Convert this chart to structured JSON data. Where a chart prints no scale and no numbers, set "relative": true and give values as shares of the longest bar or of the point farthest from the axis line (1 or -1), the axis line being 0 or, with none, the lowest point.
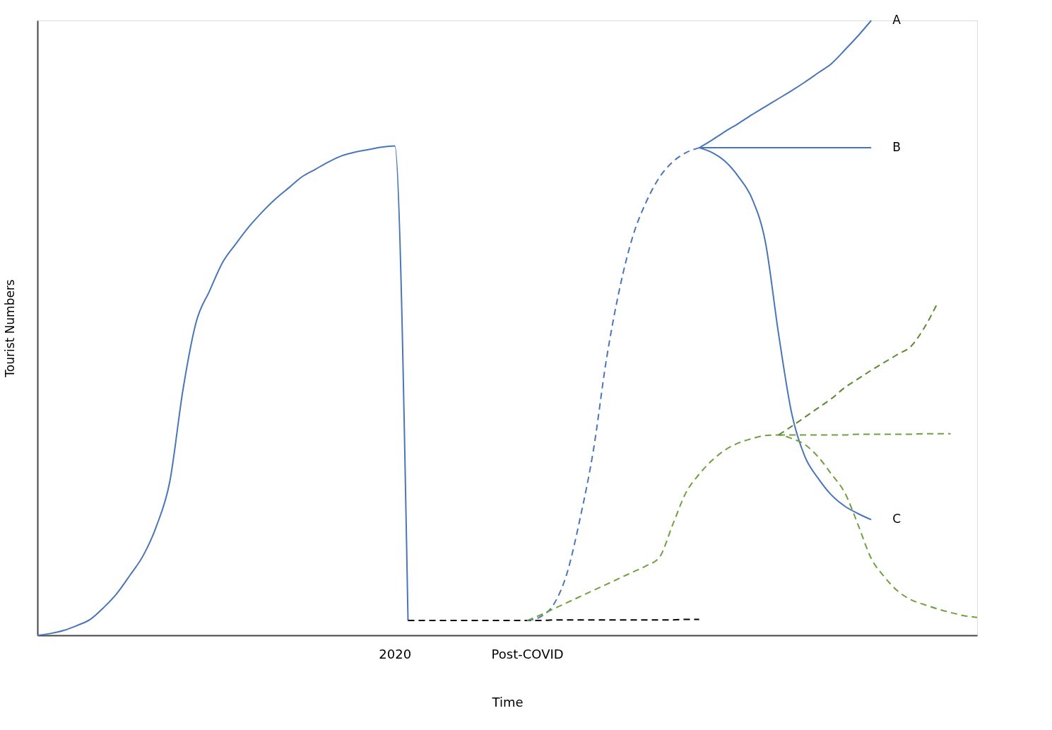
{
  "chart_data": {
    "type": "line",
    "relative": true,
    "xlabel": "Time",
    "ylabel": "Tourist Numbers",
    "categories": [
      null,
      null,
      null,
      null,
      null,
      null,
      null,
      null,
      null,
      null,
      null,
      null,
      null,
      null,
      null,
      null,
      null,
      null,
      null,
      null,
      null,
      null,
      null,
      null,
      null,
      null,
      null,
      "2020",
      null,
      null,
      null,
      null,
      null,
      null,
      null,
      null,
      null,
      "Post-COVID",
      null,
      null,
      null,
      null,
      null,
      null,
      null,
      null,
      null,
      null,
      null,
      null,
      null,
      null,
      null,
      null,
      null,
      null,
      null,
      null,
      null,
      null,
      null,
      null,
      null,
      null,
      null,
      null,
      null,
      null,
      null,
      null,
      null,
      null
    ],
    "tick_labels": "x",
    "grid": false,
    "legend": false,
    "marker": "none",
    "series": [
      {
        "color": "#4a76b8",
        "line_style": "solid",
        "values": [
          0,
          0.003,
          0.008,
          0.016,
          0.026,
          0.045,
          0.068,
          0.098,
          0.13,
          0.178,
          0.25,
          0.4,
          0.51,
          0.56,
          0.607,
          0.637,
          0.665,
          0.689,
          0.71,
          0.728,
          0.746,
          0.758,
          0.77,
          0.78,
          0.786,
          0.79,
          0.794,
          0.796,
          0.024,
          null,
          null,
          null,
          null,
          null,
          null,
          null,
          null,
          null,
          null,
          null,
          null,
          null,
          null,
          null,
          null,
          null,
          null,
          null,
          null,
          null,
          null,
          null,
          null,
          null,
          null,
          null,
          null,
          null,
          null,
          null,
          null,
          null,
          null,
          null,
          null,
          null,
          null,
          null,
          null,
          null,
          null,
          null
        ]
      },
      {
        "color": "#000000",
        "line_style": "dashed",
        "values": [
          null,
          null,
          null,
          null,
          null,
          null,
          null,
          null,
          null,
          null,
          null,
          null,
          null,
          null,
          null,
          null,
          null,
          null,
          null,
          null,
          null,
          null,
          null,
          null,
          null,
          null,
          null,
          null,
          0.024,
          0.024,
          0.024,
          0.024,
          0.024,
          0.024,
          0.024,
          0.024,
          0.024,
          0.024,
          0.024,
          0.025,
          0.025,
          0.025,
          0.025,
          0.025,
          0.025,
          0.025,
          0.025,
          0.025,
          0.025,
          0.026,
          0.026,
          null,
          null,
          null,
          null,
          null,
          null,
          null,
          null,
          null,
          null,
          null,
          null,
          null,
          null,
          null,
          null,
          null,
          null,
          null,
          null,
          null
        ]
      },
      {
        "color": "#4a76b8",
        "line_style": "dashed",
        "values": [
          null,
          null,
          null,
          null,
          null,
          null,
          null,
          null,
          null,
          null,
          null,
          null,
          null,
          null,
          null,
          null,
          null,
          null,
          null,
          null,
          null,
          null,
          null,
          null,
          null,
          null,
          null,
          null,
          null,
          null,
          null,
          null,
          null,
          null,
          null,
          null,
          null,
          0.024,
          0.03,
          0.05,
          0.1,
          0.19,
          0.3,
          0.45,
          0.565,
          0.65,
          0.705,
          0.745,
          0.77,
          0.785,
          0.793,
          null,
          null,
          null,
          null,
          null,
          null,
          null,
          null,
          null,
          null,
          null,
          null,
          null,
          null,
          null,
          null,
          null,
          null,
          null,
          null,
          null
        ]
      },
      {
        "name": "A",
        "color": "#4a76b8",
        "line_style": "solid",
        "values": [
          null,
          null,
          null,
          null,
          null,
          null,
          null,
          null,
          null,
          null,
          null,
          null,
          null,
          null,
          null,
          null,
          null,
          null,
          null,
          null,
          null,
          null,
          null,
          null,
          null,
          null,
          null,
          null,
          null,
          null,
          null,
          null,
          null,
          null,
          null,
          null,
          null,
          null,
          null,
          null,
          null,
          null,
          null,
          null,
          null,
          null,
          null,
          null,
          null,
          null,
          0.793,
          0.806,
          0.82,
          0.833,
          0.847,
          0.86,
          0.873,
          0.886,
          0.9,
          0.915,
          0.93,
          0.952,
          0.975,
          1,
          null,
          null,
          null,
          null,
          null,
          null,
          null,
          null
        ]
      },
      {
        "name": "B",
        "color": "#4a76b8",
        "line_style": "solid",
        "values": [
          null,
          null,
          null,
          null,
          null,
          null,
          null,
          null,
          null,
          null,
          null,
          null,
          null,
          null,
          null,
          null,
          null,
          null,
          null,
          null,
          null,
          null,
          null,
          null,
          null,
          null,
          null,
          null,
          null,
          null,
          null,
          null,
          null,
          null,
          null,
          null,
          null,
          null,
          null,
          null,
          null,
          null,
          null,
          null,
          null,
          null,
          null,
          null,
          null,
          null,
          0.793,
          0.793,
          0.793,
          0.793,
          0.793,
          0.793,
          0.793,
          0.793,
          0.793,
          0.793,
          0.793,
          0.793,
          0.793,
          0.793,
          null,
          null,
          null,
          null,
          null,
          null,
          null,
          null
        ]
      },
      {
        "name": "C",
        "color": "#4a76b8",
        "line_style": "solid",
        "values": [
          null,
          null,
          null,
          null,
          null,
          null,
          null,
          null,
          null,
          null,
          null,
          null,
          null,
          null,
          null,
          null,
          null,
          null,
          null,
          null,
          null,
          null,
          null,
          null,
          null,
          null,
          null,
          null,
          null,
          null,
          null,
          null,
          null,
          null,
          null,
          null,
          null,
          null,
          null,
          null,
          null,
          null,
          null,
          null,
          null,
          null,
          null,
          null,
          null,
          null,
          0.793,
          0.785,
          0.77,
          0.745,
          0.71,
          0.64,
          0.49,
          0.36,
          0.29,
          0.255,
          0.228,
          0.21,
          0.198,
          0.188,
          null,
          null,
          null,
          null,
          null,
          null,
          null,
          null
        ]
      },
      {
        "color": "#70a040",
        "line_style": "dashed",
        "values": [
          null,
          null,
          null,
          null,
          null,
          null,
          null,
          null,
          null,
          null,
          null,
          null,
          null,
          null,
          null,
          null,
          null,
          null,
          null,
          null,
          null,
          null,
          null,
          null,
          null,
          null,
          null,
          null,
          null,
          null,
          null,
          null,
          null,
          null,
          null,
          null,
          null,
          0.024,
          0.033,
          0.043,
          0.053,
          0.063,
          0.073,
          0.083,
          0.093,
          0.103,
          0.113,
          0.127,
          0.18,
          0.232,
          0.262,
          0.285,
          0.302,
          0.313,
          0.32,
          0.325,
          0.326,
          0.32,
          0.31,
          0.29,
          0.262,
          0.232,
          0.18,
          0.125,
          0.095,
          0.072,
          0.058,
          0.05,
          0.043,
          0.037,
          0.032,
          0.029
        ]
      },
      {
        "color": "#70a040",
        "line_style": "dashed",
        "values": [
          null,
          null,
          null,
          null,
          null,
          null,
          null,
          null,
          null,
          null,
          null,
          null,
          null,
          null,
          null,
          null,
          null,
          null,
          null,
          null,
          null,
          null,
          null,
          null,
          null,
          null,
          null,
          null,
          null,
          null,
          null,
          null,
          null,
          null,
          null,
          null,
          null,
          null,
          null,
          null,
          null,
          null,
          null,
          null,
          null,
          null,
          null,
          null,
          null,
          null,
          null,
          null,
          null,
          null,
          null,
          null,
          0.326,
          0.326,
          0.326,
          0.326,
          0.326,
          0.326,
          0.327,
          0.327,
          0.327,
          0.327,
          0.327,
          0.328,
          0.328,
          0.328,
          null,
          null
        ]
      },
      {
        "color": "#5a8a30",
        "line_style": "dashed",
        "values": [
          null,
          null,
          null,
          null,
          null,
          null,
          null,
          null,
          null,
          null,
          null,
          null,
          null,
          null,
          null,
          null,
          null,
          null,
          null,
          null,
          null,
          null,
          null,
          null,
          null,
          null,
          null,
          null,
          null,
          null,
          null,
          null,
          null,
          null,
          null,
          null,
          null,
          null,
          null,
          null,
          null,
          null,
          null,
          null,
          null,
          null,
          null,
          null,
          null,
          null,
          null,
          null,
          null,
          null,
          null,
          null,
          0.326,
          0.34,
          0.355,
          0.37,
          0.385,
          0.403,
          0.417,
          0.431,
          0.444,
          0.457,
          0.47,
          0.5,
          0.54,
          null,
          null,
          null
        ]
      }
    ]
  }
}
